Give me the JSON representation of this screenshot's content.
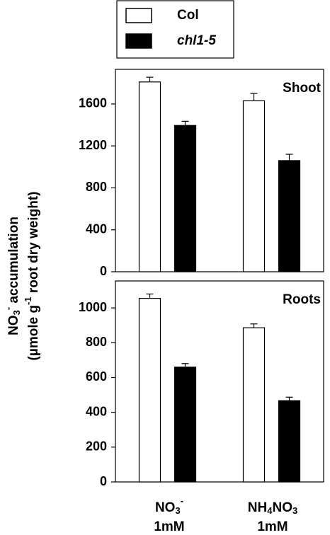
{
  "y_label": {
    "line1": [
      "NO",
      "3",
      "-",
      " accumulation"
    ],
    "line2": [
      "(µmole g",
      "-1",
      " root dry weight)"
    ]
  },
  "chart_data": [
    {
      "type": "bar",
      "title": "Shoot",
      "ylim": [
        0,
        1930
      ],
      "yticks": [
        0,
        400,
        800,
        1200,
        1600
      ],
      "series": [
        {
          "name": "Col",
          "color": "#ffffff",
          "values": [
            1810,
            1630
          ],
          "errors": [
            45,
            70
          ]
        },
        {
          "name": "chl1-5",
          "color": "#000000",
          "values": [
            1395,
            1060
          ],
          "errors": [
            40,
            60
          ]
        }
      ]
    },
    {
      "type": "bar",
      "title": "Roots",
      "ylim": [
        0,
        1155
      ],
      "yticks": [
        0,
        200,
        400,
        600,
        800,
        1000
      ],
      "categories": [
        [
          "NO",
          "3",
          "-",
          "1mM"
        ],
        [
          "NH",
          "4",
          "NO",
          "3",
          "1mM"
        ]
      ],
      "series": [
        {
          "color": "#ffffff",
          "values": [
            1055,
            886
          ],
          "errors": [
            25,
            22
          ]
        },
        {
          "color": "#000000",
          "values": [
            660,
            467
          ],
          "errors": [
            20,
            20
          ]
        }
      ]
    }
  ]
}
